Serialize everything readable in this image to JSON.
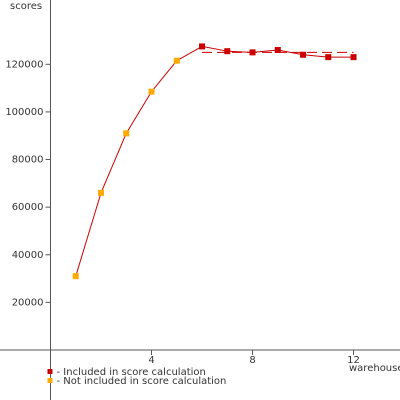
{
  "chart_data": {
    "type": "line",
    "y_label": "scores",
    "x_label": "warehouses",
    "line_color": "#cc0000",
    "series": [
      {
        "name": "- Included in score calculation",
        "color": "#cc0000",
        "x": [
          6,
          7,
          8,
          9,
          10,
          11,
          12
        ],
        "values": [
          127500,
          125500,
          125000,
          126000,
          124000,
          123000,
          123000
        ]
      },
      {
        "name": "- Not included in score calculation",
        "color": "#ffaa00",
        "x": [
          1,
          2,
          3,
          4,
          5
        ],
        "values": [
          31000,
          66000,
          91000,
          108500,
          121500
        ]
      }
    ],
    "reference_line": {
      "value": 125000,
      "xrange": [
        6,
        12
      ],
      "color": "#cc0000"
    },
    "xlim": [
      -2,
      13.84
    ],
    "ylim": [
      0,
      147000
    ],
    "xticks": [
      4,
      8,
      12
    ],
    "yticks": [
      20000,
      40000,
      60000,
      80000,
      100000,
      120000
    ]
  }
}
